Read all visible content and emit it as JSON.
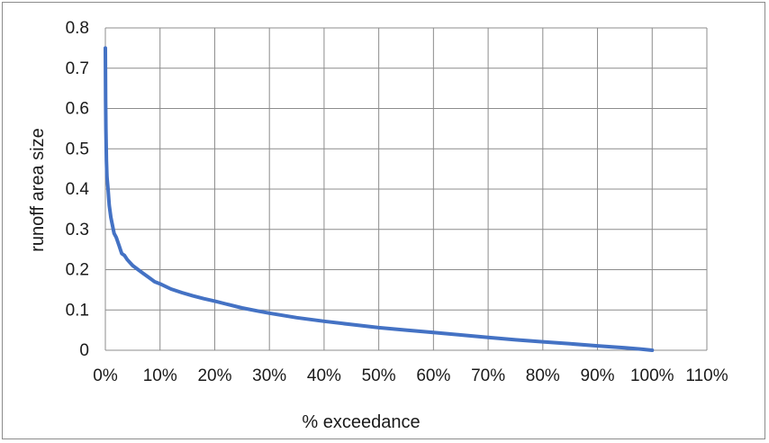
{
  "chart_data": {
    "type": "line",
    "title": "",
    "xlabel": "% exceedance",
    "ylabel": "runoff area size",
    "xlim": [
      0,
      110
    ],
    "ylim": [
      0,
      0.8
    ],
    "x_ticks": [
      0,
      10,
      20,
      30,
      40,
      50,
      60,
      70,
      80,
      90,
      100,
      110
    ],
    "x_tick_labels": [
      "0%",
      "10%",
      "20%",
      "30%",
      "40%",
      "50%",
      "60%",
      "70%",
      "80%",
      "90%",
      "100%",
      "110%"
    ],
    "y_ticks": [
      0,
      0.1,
      0.2,
      0.3,
      0.4,
      0.5,
      0.6,
      0.7,
      0.8
    ],
    "y_tick_labels": [
      "0",
      "0.1",
      "0.2",
      "0.3",
      "0.4",
      "0.5",
      "0.6",
      "0.7",
      "0.8"
    ],
    "grid": true,
    "legend": "none",
    "series": [
      {
        "color": "#4472c4",
        "x": [
          0,
          0.05,
          0.1,
          0.2,
          0.3,
          0.5,
          0.7,
          1,
          1.3,
          1.6,
          2,
          2.5,
          3,
          3.5,
          4,
          5,
          6,
          7,
          8,
          9,
          10,
          12,
          14,
          16,
          18,
          20,
          22,
          25,
          28,
          30,
          35,
          40,
          45,
          50,
          55,
          60,
          65,
          70,
          75,
          80,
          85,
          90,
          95,
          98,
          100
        ],
        "y": [
          0.75,
          0.62,
          0.55,
          0.47,
          0.43,
          0.4,
          0.36,
          0.33,
          0.31,
          0.29,
          0.28,
          0.26,
          0.24,
          0.235,
          0.225,
          0.21,
          0.2,
          0.19,
          0.18,
          0.17,
          0.165,
          0.152,
          0.143,
          0.135,
          0.128,
          0.122,
          0.115,
          0.105,
          0.097,
          0.092,
          0.081,
          0.072,
          0.064,
          0.056,
          0.05,
          0.044,
          0.038,
          0.032,
          0.026,
          0.021,
          0.016,
          0.011,
          0.006,
          0.003,
          0.0
        ]
      }
    ]
  }
}
